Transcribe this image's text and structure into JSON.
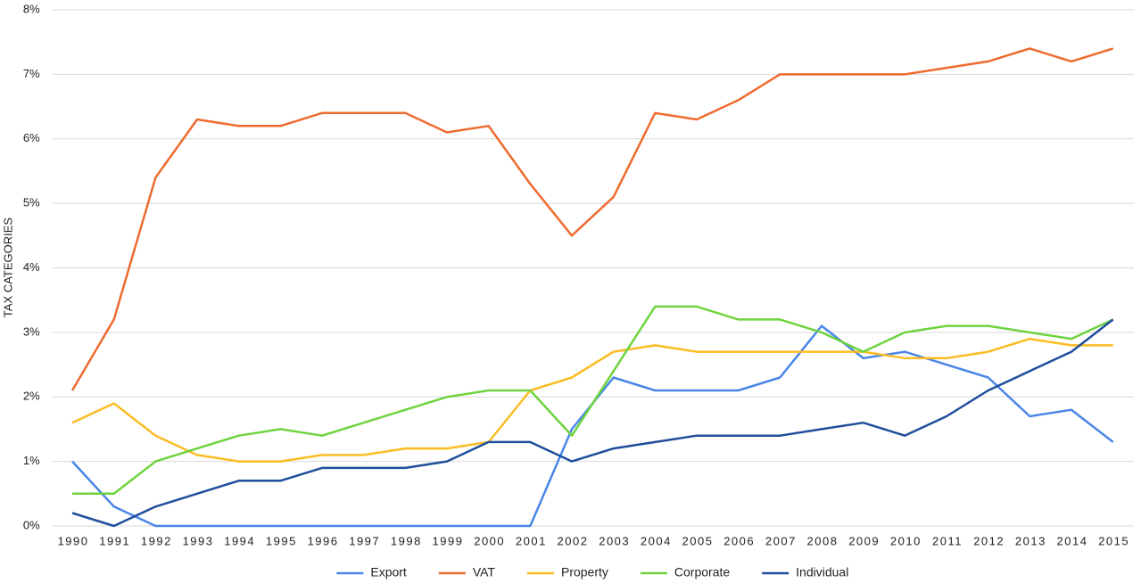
{
  "chart_data": {
    "type": "line",
    "y_label": "TAX CATEGORIES",
    "categories": [
      "1990",
      "1991",
      "1992",
      "1993",
      "1994",
      "1995",
      "1996",
      "1997",
      "1998",
      "1999",
      "2000",
      "2001",
      "2002",
      "2003",
      "2004",
      "2005",
      "2006",
      "2007",
      "2008",
      "2009",
      "2010",
      "2011",
      "2012",
      "2013",
      "2014",
      "2015"
    ],
    "series": [
      {
        "name": "Export",
        "color": "#4a86e8",
        "values": [
          1.0,
          0.3,
          0,
          0,
          0,
          0,
          0,
          0,
          0,
          0,
          0,
          0,
          1.5,
          2.3,
          2.1,
          2.1,
          2.1,
          2.3,
          3.1,
          2.6,
          2.7,
          2.5,
          2.3,
          1.7,
          1.8,
          1.3
        ]
      },
      {
        "name": "VAT",
        "color": "#ee6b2f",
        "values": [
          2.1,
          3.2,
          5.4,
          6.3,
          6.2,
          6.2,
          6.4,
          6.4,
          6.4,
          6.1,
          6.2,
          5.3,
          4.5,
          5.1,
          6.4,
          6.3,
          6.6,
          7.0,
          7.0,
          7.0,
          7.0,
          7.1,
          7.2,
          7.4,
          7.2,
          7.4
        ]
      },
      {
        "name": "Property",
        "color": "#fbbc22",
        "values": [
          1.6,
          1.9,
          1.4,
          1.1,
          1.0,
          1.0,
          1.1,
          1.1,
          1.2,
          1.2,
          1.3,
          2.1,
          2.3,
          2.7,
          2.8,
          2.7,
          2.7,
          2.7,
          2.7,
          2.7,
          2.6,
          2.6,
          2.7,
          2.9,
          2.8,
          2.8
        ]
      },
      {
        "name": "Corporate",
        "color": "#6ed33f",
        "values": [
          0.5,
          0.5,
          1.0,
          1.2,
          1.4,
          1.5,
          1.4,
          1.6,
          1.8,
          2.0,
          2.1,
          2.1,
          1.4,
          2.4,
          3.4,
          3.4,
          3.2,
          3.2,
          3.0,
          2.7,
          3.0,
          3.1,
          3.1,
          3.0,
          2.9,
          3.2
        ]
      },
      {
        "name": "Individual",
        "color": "#1f4e9c",
        "values": [
          0.2,
          0,
          0.3,
          0.5,
          0.7,
          0.7,
          0.9,
          0.9,
          0.9,
          1.0,
          1.3,
          1.3,
          1.0,
          1.2,
          1.3,
          1.4,
          1.4,
          1.4,
          1.5,
          1.6,
          1.4,
          1.7,
          2.1,
          2.4,
          2.7,
          3.2
        ]
      }
    ],
    "ylim": [
      0,
      8
    ],
    "yticks": [
      {
        "value": 0,
        "label": "0%"
      },
      {
        "value": 1,
        "label": "1%"
      },
      {
        "value": 2,
        "label": "2%"
      },
      {
        "value": 3,
        "label": "3%"
      },
      {
        "value": 4,
        "label": "4%"
      },
      {
        "value": 5,
        "label": "5%"
      },
      {
        "value": 6,
        "label": "6%"
      },
      {
        "value": 7,
        "label": "7%"
      },
      {
        "value": 8,
        "label": "8%"
      }
    ],
    "grid": true,
    "legend": "bottom"
  }
}
